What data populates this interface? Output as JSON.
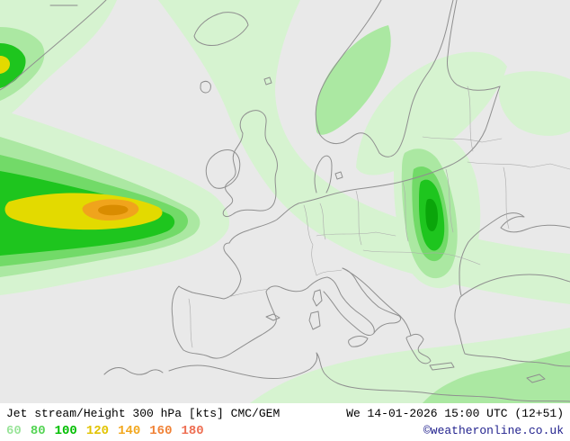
{
  "footer": {
    "product_label": "Jet stream/Height 300 hPa [kts] CMC/GEM",
    "valid_time": "We 14-01-2026 15:00 UTC (12+51)",
    "copyright": "©weatheronline.co.uk",
    "legend_values": [
      "60",
      "80",
      "100",
      "120",
      "140",
      "160",
      "180"
    ],
    "legend_colors": [
      "#9ae49a",
      "#54d454",
      "#00be00",
      "#e2c300",
      "#f2a71e",
      "#f08236",
      "#ee6e52"
    ]
  },
  "palette": {
    "sea": "#e9e9e9",
    "coast": "#8f8f8f",
    "border": "#ababab",
    "band-a": "#d6f3d0",
    "band-b": "#abe8a2",
    "band-c": "#72da68",
    "band-d": "#1ec51e",
    "band-dd": "#0aa50a",
    "band-e": "#e3da00",
    "band-f": "#f0a41c",
    "band-g": "#d98c00"
  }
}
